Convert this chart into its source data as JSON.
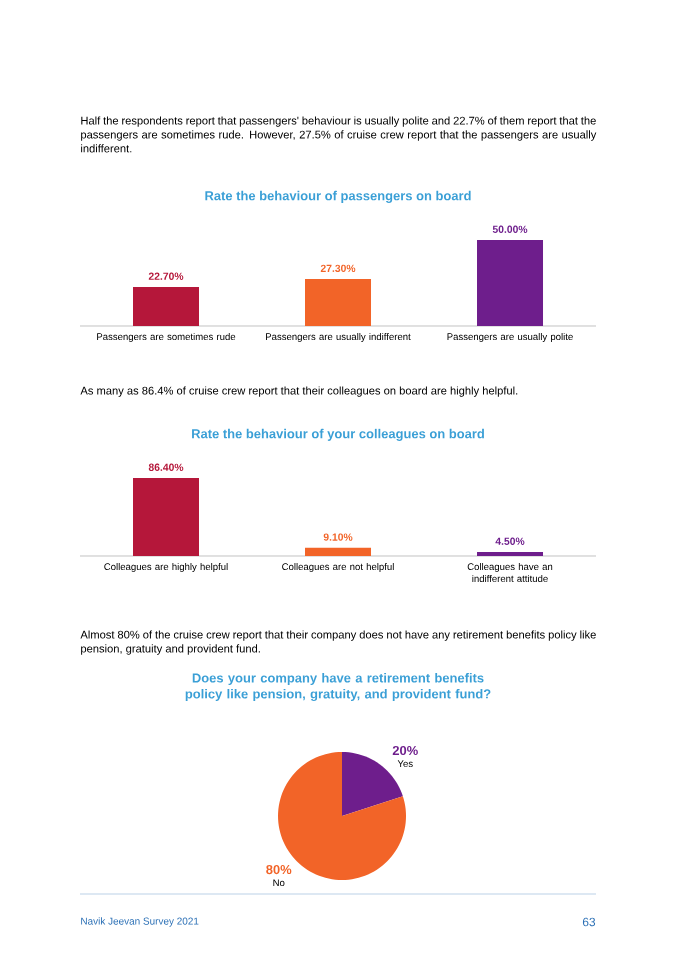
{
  "chart_data": [
    {
      "type": "bar",
      "title": "Rate the behaviour of passengers on board",
      "categories": [
        "Passengers are  sometimes rude",
        "Passengers are usually  indifferent",
        "Passengers are usually polite"
      ],
      "values": [
        22.7,
        27.3,
        50.0
      ],
      "colors": [
        "#b5173a",
        "#f26428",
        "#6e1e8c"
      ],
      "value_labels": [
        "22.70%",
        "27.30%",
        "50.00%"
      ],
      "annotations": [
        "Half the respondents report that passengers' behaviour is usually polite and 22.7% of them report that the passengers are sometimes rude. However, 27.5% of cruise crew report that the passengers are usually indifferent."
      ]
    },
    {
      "type": "bar",
      "title": "Rate the behaviour of your colleagues on board",
      "categories": [
        "Colleagues are highly helpful",
        "Colleagues are not helpful",
        "Colleagues have an indifferent attitude"
      ],
      "values": [
        86.4,
        9.1,
        4.5
      ],
      "colors": [
        "#b5173a",
        "#f26428",
        "#6e1e8c"
      ],
      "value_labels": [
        "86.40%",
        "9.10%",
        "4.50%"
      ],
      "annotations": [
        "As many as 86.4% of cruise crew report that their colleagues on board are highly helpful."
      ]
    },
    {
      "type": "pie",
      "title": "Does your company have a retirement benefits policy like pension, gratuity, and provident fund?",
      "categories": [
        "Yes",
        "No"
      ],
      "values": [
        20,
        80
      ],
      "colors": [
        "#6e1e8c",
        "#f26428"
      ],
      "value_labels": [
        "20%",
        "80%"
      ],
      "annotations": [
        "Almost 80% of the cruise crew report that their company does not have any retirement benefits policy like pension, gratuity and provident fund.",
        "Navik Jeevan Survey 2021",
        "63"
      ]
    }
  ]
}
